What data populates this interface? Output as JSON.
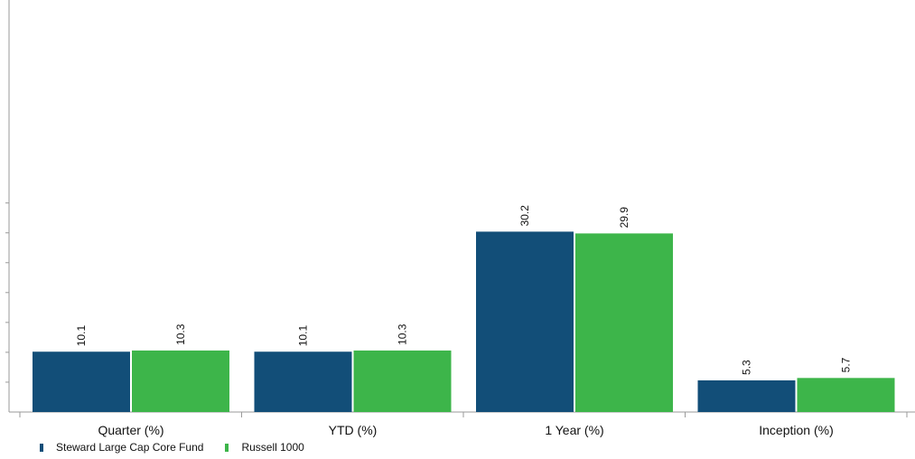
{
  "chart_data": {
    "type": "bar",
    "categories": [
      "Quarter (%)",
      "YTD (%)",
      "1 Year (%)",
      "Inception (%)"
    ],
    "series": [
      {
        "name": "Steward Large Cap Core Fund",
        "color": "#124e78",
        "values": [
          10.1,
          10.1,
          30.2,
          5.3
        ],
        "labels": [
          "10.1",
          "10.1",
          "30.2",
          "5.3"
        ]
      },
      {
        "name": "Russell 1000",
        "color": "#3db54a",
        "values": [
          10.3,
          10.3,
          29.9,
          5.7
        ],
        "labels": [
          "10.3",
          "10.3",
          "29.9",
          "5.7"
        ]
      }
    ],
    "title": "",
    "xlabel": "",
    "ylabel": "",
    "ylim": [
      0,
      35
    ],
    "ytick_count": 7,
    "grid": false,
    "legend_position": "bottom-left"
  }
}
